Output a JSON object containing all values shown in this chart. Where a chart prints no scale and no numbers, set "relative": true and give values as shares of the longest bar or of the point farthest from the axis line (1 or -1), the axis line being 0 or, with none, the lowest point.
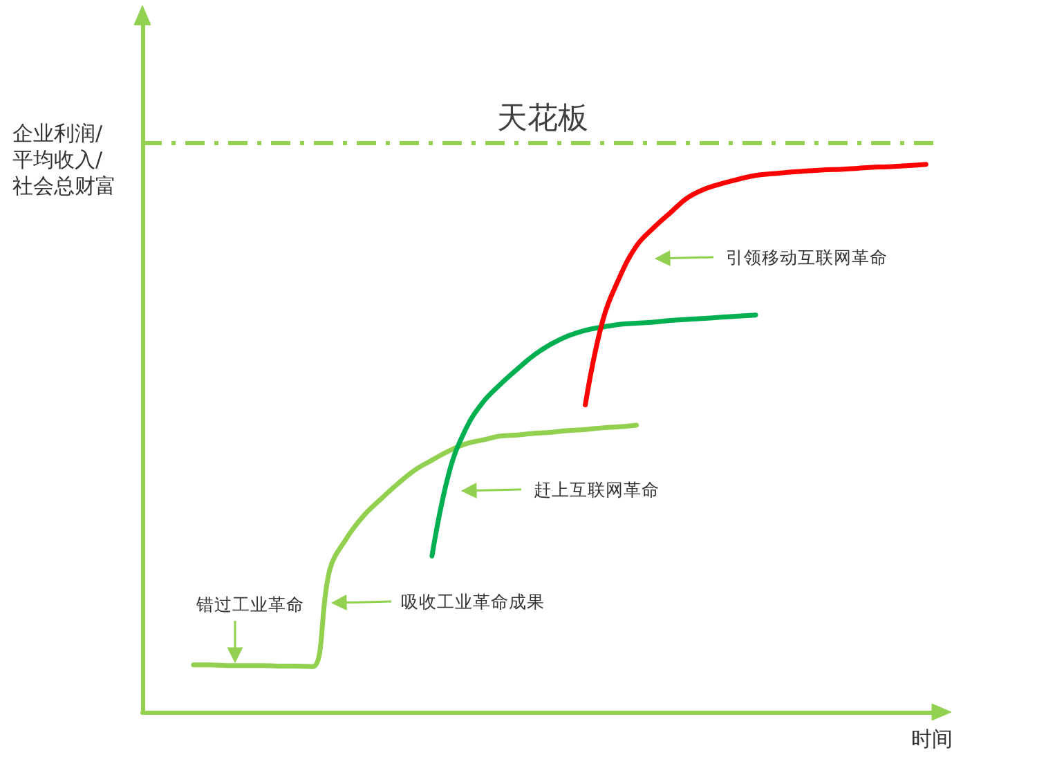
{
  "chart_data": {
    "type": "line",
    "relative": true,
    "xlabel": "时间",
    "ylabel": "企业利润/\n平均收入/\n社会总财富",
    "categories": [
      null,
      null,
      null,
      null,
      null,
      null,
      null,
      null,
      null,
      null,
      null,
      null,
      null,
      null,
      null,
      null,
      null,
      null,
      null,
      null,
      null,
      null,
      null,
      null,
      null,
      null,
      null,
      null,
      null,
      null,
      null,
      null,
      null,
      null,
      null,
      null,
      null,
      null,
      null,
      null,
      null,
      null,
      null,
      null,
      null,
      null,
      null,
      null
    ],
    "series": [
      {
        "color": "#92d050",
        "values": [
          null,
          null,
          null,
          0.086,
          0.086,
          0.085,
          0.085,
          0.085,
          0.084,
          0.084,
          0.083,
          0.26,
          0.318,
          0.359,
          0.389,
          0.417,
          0.442,
          0.46,
          0.477,
          0.49,
          0.497,
          0.504,
          0.506,
          0.509,
          0.511,
          0.514,
          0.516,
          0.519,
          0.521,
          0.524,
          null,
          null,
          null,
          null,
          null,
          null,
          null,
          null,
          null,
          null,
          null,
          null,
          null,
          null,
          null,
          null,
          null,
          null
        ]
      },
      {
        "color": "#00b050",
        "values": [
          null,
          null,
          null,
          null,
          null,
          null,
          null,
          null,
          null,
          null,
          null,
          null,
          null,
          null,
          null,
          null,
          null,
          0.285,
          0.437,
          0.518,
          0.566,
          0.598,
          0.626,
          0.652,
          0.672,
          0.687,
          0.697,
          0.703,
          0.708,
          0.71,
          0.712,
          0.715,
          0.717,
          0.719,
          0.721,
          0.723,
          0.725,
          null,
          null,
          null,
          null,
          null,
          null,
          null,
          null,
          null,
          null,
          null
        ]
      },
      {
        "color": "#ff0000",
        "values": [
          null,
          null,
          null,
          null,
          null,
          null,
          null,
          null,
          null,
          null,
          null,
          null,
          null,
          null,
          null,
          null,
          null,
          null,
          null,
          null,
          null,
          null,
          null,
          null,
          null,
          null,
          0.561,
          0.712,
          0.793,
          0.851,
          0.884,
          0.912,
          0.939,
          0.955,
          0.965,
          0.973,
          0.98,
          0.983,
          0.986,
          0.988,
          0.99,
          0.991,
          0.993,
          0.995,
          0.996,
          0.998,
          1.0,
          null
        ]
      }
    ],
    "ref_lines": [
      {
        "axis": "y",
        "value": 1.04,
        "label": "天花板",
        "color": "#92d050",
        "line_style": "dashed"
      }
    ],
    "annotations": [
      "错过工业革命",
      "吸收工业革命成果",
      "赶上互联网革命",
      "引领移动互联网革命"
    ]
  }
}
